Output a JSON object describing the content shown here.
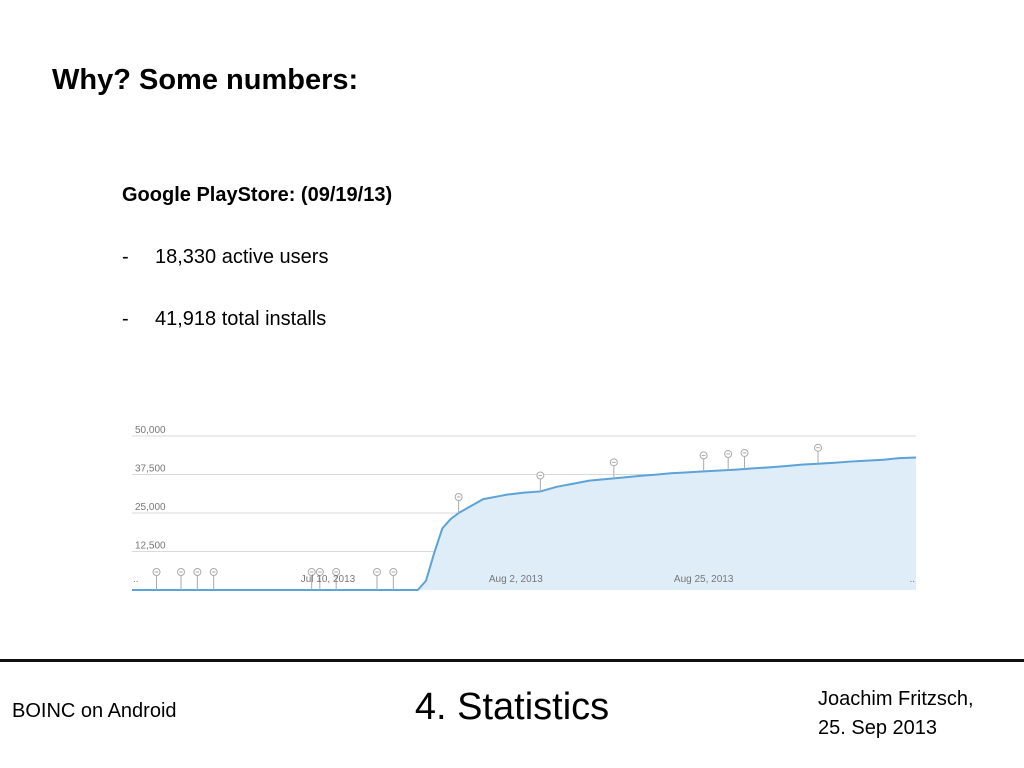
{
  "slide": {
    "title": "Why? Some numbers:",
    "subheading": "Google PlayStore: (09/19/13)",
    "bullets": [
      {
        "dash": "-",
        "text": "18,330 active users"
      },
      {
        "dash": "-",
        "text": "41,918 total installs"
      }
    ]
  },
  "footer": {
    "left": "BOINC on Android",
    "center": "4. Statistics",
    "right_line1": "Joachim Fritzsch,",
    "right_line2": "25. Sep 2013"
  },
  "colors": {
    "line": "#5ba3d8",
    "area": "#deedf8",
    "grid": "#d9d9d9",
    "axis_text": "#777777",
    "marker": "#aaaaaa"
  },
  "chart_data": {
    "type": "area",
    "ylim": [
      0,
      50000
    ],
    "yticks": [
      {
        "value": 50000,
        "label": "50,000"
      },
      {
        "value": 37500,
        "label": "37,500"
      },
      {
        "value": 25000,
        "label": "25,000"
      },
      {
        "value": 12500,
        "label": "12,500"
      }
    ],
    "xlim": [
      0,
      96
    ],
    "xticks": [
      {
        "day": 24,
        "label": "Jul 10, 2013"
      },
      {
        "day": 47,
        "label": "Aug 2, 2013"
      },
      {
        "day": 70,
        "label": "Aug 25, 2013"
      }
    ],
    "x_edge_marks": [
      {
        "day": 0,
        "label": ".."
      },
      {
        "day": 96,
        "label": ".."
      }
    ],
    "series": [
      {
        "x": [
          0,
          35,
          36,
          37,
          38,
          39,
          40,
          41,
          42,
          43,
          44,
          45,
          46,
          47,
          48,
          50,
          52,
          54,
          56,
          58,
          60,
          62,
          64,
          66,
          68,
          70,
          72,
          74,
          76,
          78,
          80,
          82,
          84,
          86,
          88,
          90,
          92,
          94,
          96
        ],
        "y": [
          0,
          0,
          3000,
          12000,
          20000,
          23000,
          25000,
          26500,
          28000,
          29500,
          30000,
          30500,
          31000,
          31300,
          31600,
          32000,
          33500,
          34500,
          35500,
          36000,
          36500,
          37000,
          37400,
          37900,
          38200,
          38500,
          38800,
          39100,
          39500,
          39800,
          40200,
          40700,
          41000,
          41300,
          41700,
          42000,
          42300,
          42800,
          43000
        ]
      }
    ],
    "annotation_days": [
      3,
      6,
      8,
      10,
      22,
      23,
      25,
      30,
      32,
      40,
      50,
      59,
      70,
      73,
      75,
      84
    ]
  }
}
